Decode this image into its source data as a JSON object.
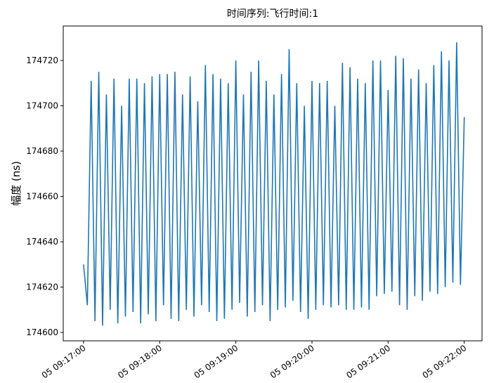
{
  "chart_data": {
    "type": "line",
    "title": "时间序列:飞行时间:1",
    "ylabel": "幅度 (ns)",
    "color": "#1f77b4",
    "x": [
      "09:17:00",
      "09:17:03",
      "09:17:06",
      "09:17:09",
      "09:17:12",
      "09:17:15",
      "09:17:18",
      "09:17:21",
      "09:17:24",
      "09:17:27",
      "09:17:30",
      "09:17:33",
      "09:17:36",
      "09:17:39",
      "09:17:42",
      "09:17:45",
      "09:17:48",
      "09:17:51",
      "09:17:54",
      "09:17:57",
      "09:18:00",
      "09:18:03",
      "09:18:06",
      "09:18:09",
      "09:18:12",
      "09:18:15",
      "09:18:18",
      "09:18:21",
      "09:18:24",
      "09:18:27",
      "09:18:30",
      "09:18:33",
      "09:18:36",
      "09:18:39",
      "09:18:42",
      "09:18:45",
      "09:18:48",
      "09:18:51",
      "09:18:54",
      "09:18:57",
      "09:19:00",
      "09:19:03",
      "09:19:06",
      "09:19:09",
      "09:19:12",
      "09:19:15",
      "09:19:18",
      "09:19:21",
      "09:19:24",
      "09:19:27",
      "09:19:30",
      "09:19:33",
      "09:19:36",
      "09:19:39",
      "09:19:42",
      "09:19:45",
      "09:19:48",
      "09:19:51",
      "09:19:54",
      "09:19:57",
      "09:20:00",
      "09:20:03",
      "09:20:06",
      "09:20:09",
      "09:20:12",
      "09:20:15",
      "09:20:18",
      "09:20:21",
      "09:20:24",
      "09:20:27",
      "09:20:30",
      "09:20:33",
      "09:20:36",
      "09:20:39",
      "09:20:42",
      "09:20:45",
      "09:20:48",
      "09:20:51",
      "09:20:54",
      "09:20:57",
      "09:21:00",
      "09:21:03",
      "09:21:06",
      "09:21:09",
      "09:21:12",
      "09:21:15",
      "09:21:18",
      "09:21:21",
      "09:21:24",
      "09:21:27",
      "09:21:30",
      "09:21:33",
      "09:21:36",
      "09:21:39",
      "09:21:42",
      "09:21:45",
      "09:21:48",
      "09:21:51",
      "09:21:54",
      "09:21:57",
      "09:22:00"
    ],
    "values": [
      174630,
      174612,
      174711,
      174605,
      174715,
      174603,
      174705,
      174610,
      174712,
      174604,
      174700,
      174607,
      174712,
      174609,
      174712,
      174604,
      174710,
      174608,
      174713,
      174605,
      174714,
      174612,
      174714,
      174606,
      174715,
      174605,
      174705,
      174610,
      174713,
      174607,
      174702,
      174612,
      174718,
      174609,
      174714,
      174605,
      174712,
      174606,
      174710,
      174610,
      174720,
      174613,
      174705,
      174607,
      174715,
      174609,
      174720,
      174612,
      174711,
      174605,
      174705,
      174610,
      174714,
      174611,
      174725,
      174614,
      174710,
      174609,
      174700,
      174606,
      174711,
      174610,
      174710,
      174612,
      174711,
      174611,
      174700,
      174612,
      174719,
      174610,
      174717,
      174610,
      174712,
      174611,
      174710,
      174610,
      174720,
      174616,
      174720,
      174617,
      174707,
      174618,
      174722,
      174612,
      174721,
      174610,
      174712,
      174616,
      174716,
      174614,
      174710,
      174618,
      174718,
      174617,
      174724,
      174620,
      174720,
      174622,
      174728,
      174621,
      174695
    ],
    "xlim": [
      "09:16:44",
      "09:22:14"
    ],
    "xticks": [
      {
        "value": "09:17:00",
        "label": "05 09:17:00"
      },
      {
        "value": "09:18:00",
        "label": "05 09:18:00"
      },
      {
        "value": "09:19:00",
        "label": "05 09:19:00"
      },
      {
        "value": "09:20:00",
        "label": "05 09:20:00"
      },
      {
        "value": "09:21:00",
        "label": "05 09:21:00"
      },
      {
        "value": "09:22:00",
        "label": "05 09:22:00"
      }
    ],
    "ylim": [
      174596.3,
      174735.2
    ],
    "yticks": [
      174600,
      174620,
      174640,
      174660,
      174680,
      174700,
      174720
    ]
  }
}
